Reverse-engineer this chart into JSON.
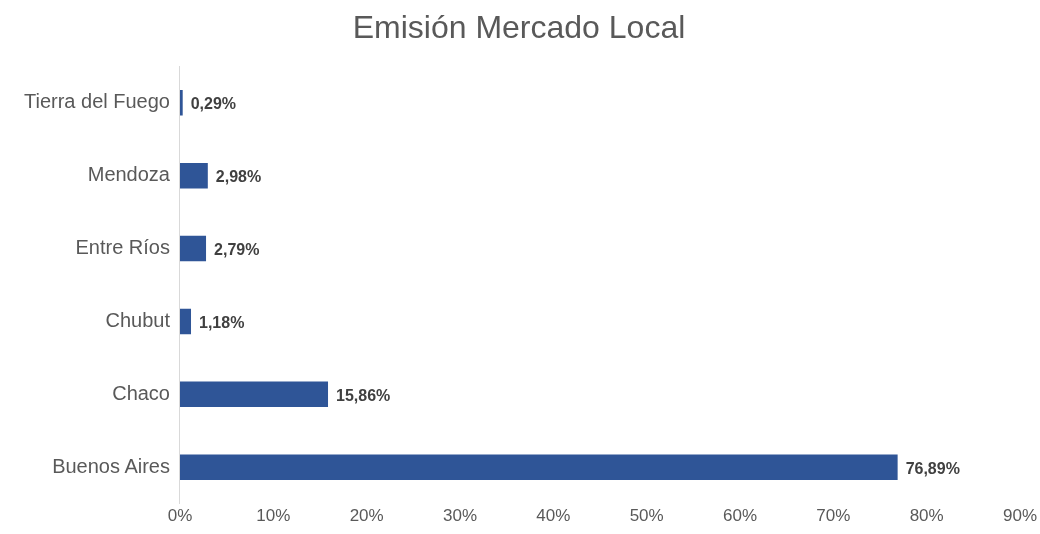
{
  "chart_data": {
    "type": "bar",
    "title": "Emisión Mercado Local",
    "orientation": "horizontal",
    "categories": [
      "Tierra del Fuego",
      "Mendoza",
      "Entre Ríos",
      "Chubut",
      "Chaco",
      "Buenos Aires"
    ],
    "values": [
      0.29,
      2.98,
      2.79,
      1.18,
      15.86,
      76.89
    ],
    "value_labels": [
      "0,29%",
      "2,98%",
      "2,79%",
      "1,18%",
      "15,86%",
      "76,89%"
    ],
    "color": "#2f5597",
    "xlim": [
      0,
      90
    ],
    "xticks": [
      {
        "value": 0,
        "label": "0%"
      },
      {
        "value": 10,
        "label": "10%"
      },
      {
        "value": 20,
        "label": "20%"
      },
      {
        "value": 30,
        "label": "30%"
      },
      {
        "value": 40,
        "label": "40%"
      },
      {
        "value": 50,
        "label": "50%"
      },
      {
        "value": 60,
        "label": "60%"
      },
      {
        "value": 70,
        "label": "70%"
      },
      {
        "value": 80,
        "label": "80%"
      },
      {
        "value": 90,
        "label": "90%"
      }
    ],
    "grid": false,
    "legend": false
  }
}
